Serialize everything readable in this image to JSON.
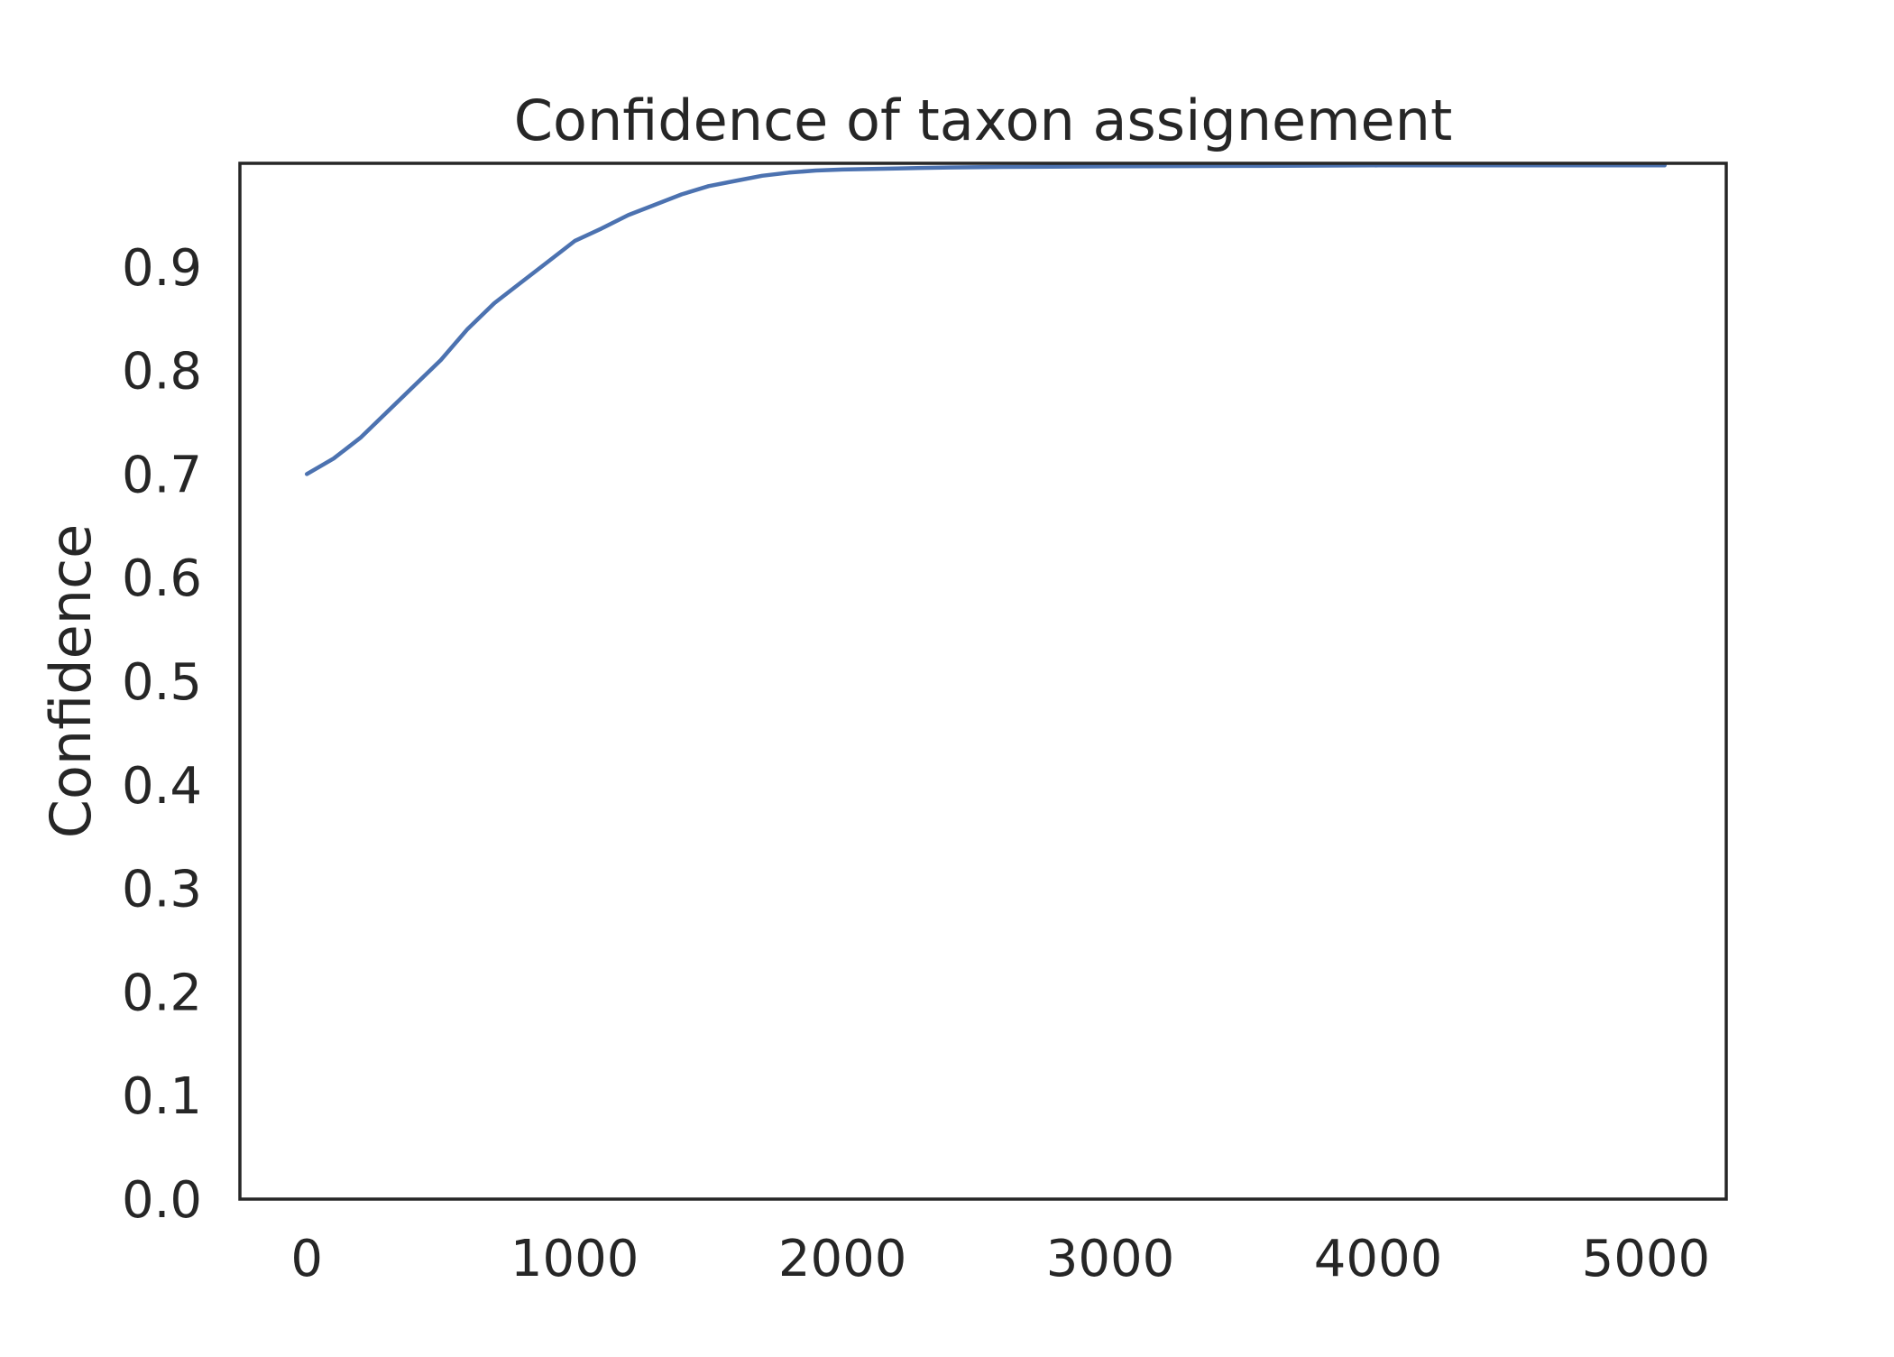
{
  "chart_data": {
    "type": "line",
    "title": "Confidence of taxon assignement",
    "xlabel": "",
    "ylabel": "Confidence",
    "xlim": [
      -250,
      5300
    ],
    "ylim": [
      0.0,
      1.0
    ],
    "x_ticks": [
      0,
      1000,
      2000,
      3000,
      4000,
      5000
    ],
    "x_tick_labels": [
      "0",
      "1000",
      "2000",
      "3000",
      "4000",
      "5000"
    ],
    "y_ticks": [
      0.0,
      0.1,
      0.2,
      0.3,
      0.4,
      0.5,
      0.6,
      0.7,
      0.8,
      0.9
    ],
    "y_tick_labels": [
      "0.0",
      "0.1",
      "0.2",
      "0.3",
      "0.4",
      "0.5",
      "0.6",
      "0.7",
      "0.8",
      "0.9"
    ],
    "grid": false,
    "legend": "none",
    "series_color": "#4c72b0",
    "series": [
      {
        "x": [
          0,
          100,
          200,
          300,
          400,
          500,
          600,
          700,
          800,
          900,
          1000,
          1100,
          1200,
          1300,
          1400,
          1500,
          1600,
          1700,
          1800,
          1900,
          2000,
          2200,
          2400,
          2600,
          3000,
          3500,
          4000,
          4500,
          5070
        ],
        "values": [
          0.7,
          0.715,
          0.735,
          0.76,
          0.785,
          0.81,
          0.84,
          0.865,
          0.885,
          0.905,
          0.925,
          0.937,
          0.95,
          0.96,
          0.97,
          0.978,
          0.983,
          0.988,
          0.991,
          0.993,
          0.994,
          0.995,
          0.996,
          0.9965,
          0.997,
          0.9975,
          0.998,
          0.998,
          0.998
        ]
      }
    ]
  }
}
